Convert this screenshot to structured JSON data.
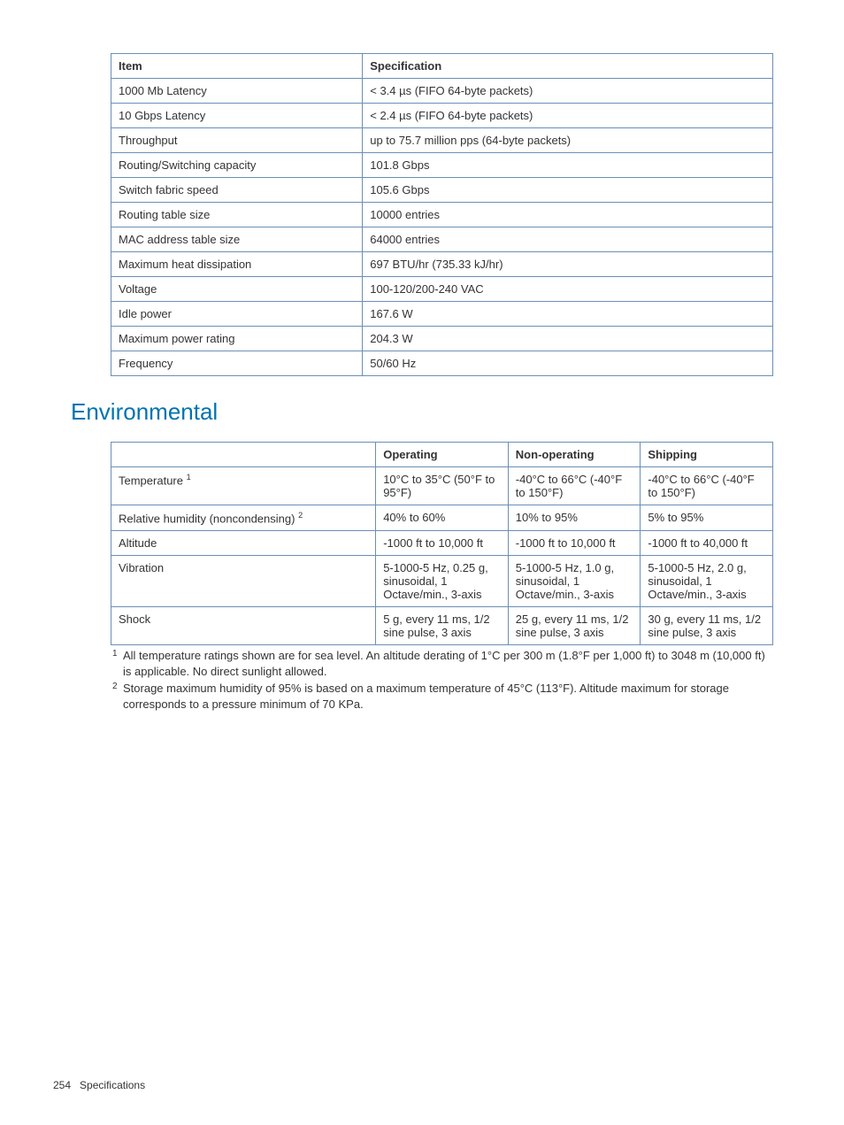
{
  "table1": {
    "headers": [
      "Item",
      "Specification"
    ],
    "rows": [
      [
        "1000 Mb Latency",
        "< 3.4 µs (FIFO 64-byte packets)"
      ],
      [
        "10 Gbps Latency",
        "< 2.4 µs (FIFO 64-byte packets)"
      ],
      [
        "Throughput",
        "up to 75.7 million pps (64-byte packets)"
      ],
      [
        "Routing/Switching capacity",
        "101.8 Gbps"
      ],
      [
        "Switch fabric speed",
        "105.6 Gbps"
      ],
      [
        "Routing table size",
        "10000 entries"
      ],
      [
        "MAC address table size",
        "64000 entries"
      ],
      [
        "Maximum heat dissipation",
        "697 BTU/hr (735.33 kJ/hr)"
      ],
      [
        "Voltage",
        "100-120/200-240 VAC"
      ],
      [
        "Idle power",
        "167.6 W"
      ],
      [
        "Maximum power rating",
        "204.3 W"
      ],
      [
        "Frequency",
        "50/60 Hz"
      ]
    ],
    "border_color": "#6b8fb5",
    "fontsize": 13
  },
  "heading": {
    "text": "Environmental",
    "color": "#0073b0",
    "fontsize": 26
  },
  "table2": {
    "headers": [
      "",
      "Operating",
      "Non-operating",
      "Shipping"
    ],
    "rows": [
      {
        "label": "Temperature",
        "sup": "1",
        "cells": [
          "10°C to 35°C (50°F to 95°F)",
          "-40°C to 66°C (-40°F to 150°F)",
          "-40°C to 66°C (-40°F to 150°F)"
        ]
      },
      {
        "label": "Relative humidity (noncondensing)",
        "sup": "2",
        "cells": [
          "40% to 60%",
          "10% to 95%",
          "5% to 95%"
        ]
      },
      {
        "label": "Altitude",
        "sup": null,
        "cells": [
          "-1000 ft to 10,000 ft",
          "-1000 ft to 10,000 ft",
          "-1000 ft to 40,000 ft"
        ]
      },
      {
        "label": "Vibration",
        "sup": null,
        "cells": [
          "5-1000-5 Hz, 0.25 g, sinusoidal, 1 Octave/min., 3-axis",
          "5-1000-5 Hz, 1.0 g, sinusoidal, 1 Octave/min., 3-axis",
          "5-1000-5 Hz, 2.0 g, sinusoidal, 1 Octave/min., 3-axis"
        ]
      },
      {
        "label": "Shock",
        "sup": null,
        "cells": [
          "5 g, every 11 ms, 1/2 sine pulse, 3 axis",
          "25 g, every 11 ms, 1/2 sine pulse, 3 axis",
          "30 g, every 11 ms, 1/2 sine pulse, 3 axis"
        ]
      }
    ],
    "border_color": "#6b8fb5",
    "fontsize": 13
  },
  "footnotes": [
    {
      "num": "1",
      "text": "All temperature ratings shown are for sea level. An altitude derating of 1°C per 300 m (1.8°F per 1,000 ft) to 3048 m (10,000 ft) is applicable. No direct sunlight allowed."
    },
    {
      "num": "2",
      "text": "Storage maximum humidity of 95% is based on a maximum temperature of 45°C (113°F). Altitude maximum for storage corresponds to a pressure minimum of 70 KPa."
    }
  ],
  "footer": {
    "page_number": "254",
    "section": "Specifications"
  }
}
